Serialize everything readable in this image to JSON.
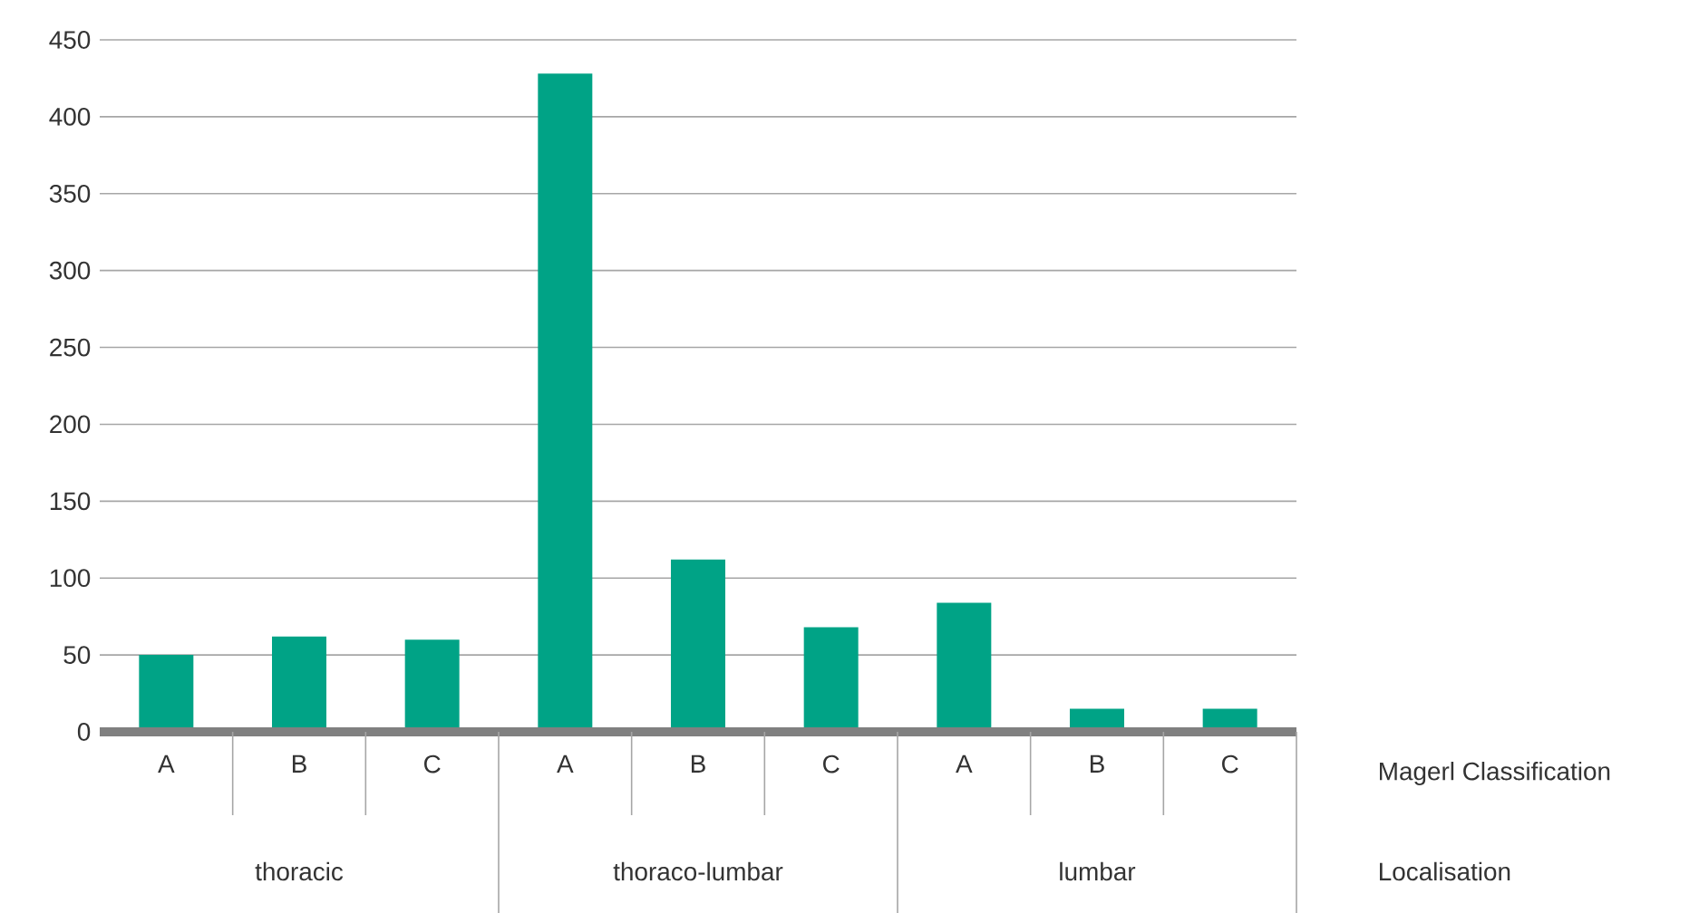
{
  "chart_data": {
    "type": "bar",
    "xlabel": "Magerl Classification",
    "categories": [
      "A",
      "B",
      "C",
      "A",
      "B",
      "C",
      "A",
      "B",
      "C"
    ],
    "values": [
      50,
      62,
      60,
      428,
      112,
      68,
      84,
      15,
      15
    ],
    "color": "#00a386",
    "ylim": [
      0,
      450
    ],
    "yticks": [
      0,
      50,
      100,
      150,
      200,
      250,
      300,
      350,
      400,
      450
    ],
    "grid": "y",
    "annotations": [
      "Localisation",
      "thoracic",
      "thoraco-lumbar",
      "lumbar"
    ]
  }
}
